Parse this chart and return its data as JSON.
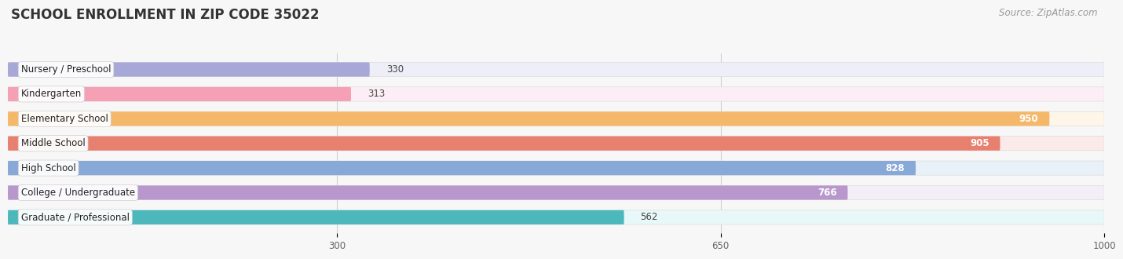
{
  "title": "SCHOOL ENROLLMENT IN ZIP CODE 35022",
  "source": "Source: ZipAtlas.com",
  "categories": [
    "Nursery / Preschool",
    "Kindergarten",
    "Elementary School",
    "Middle School",
    "High School",
    "College / Undergraduate",
    "Graduate / Professional"
  ],
  "values": [
    330,
    313,
    950,
    905,
    828,
    766,
    562
  ],
  "bar_colors": [
    "#a8a8d8",
    "#f5a0b5",
    "#f5b86a",
    "#e88070",
    "#88a8d8",
    "#b898cc",
    "#4db8bc"
  ],
  "bar_bg_colors": [
    "#eeeef8",
    "#fceef4",
    "#fef6e8",
    "#fbeaea",
    "#e8f0f8",
    "#f4eef8",
    "#e8f8f8"
  ],
  "value_inside": [
    false,
    false,
    true,
    true,
    true,
    true,
    false
  ],
  "xlim": [
    0,
    1000
  ],
  "xticks": [
    300,
    650,
    1000
  ],
  "background_color": "#f7f7f7",
  "title_fontsize": 12,
  "source_fontsize": 8.5,
  "label_fontsize": 8.5,
  "value_fontsize": 8.5,
  "bar_height": 0.58
}
